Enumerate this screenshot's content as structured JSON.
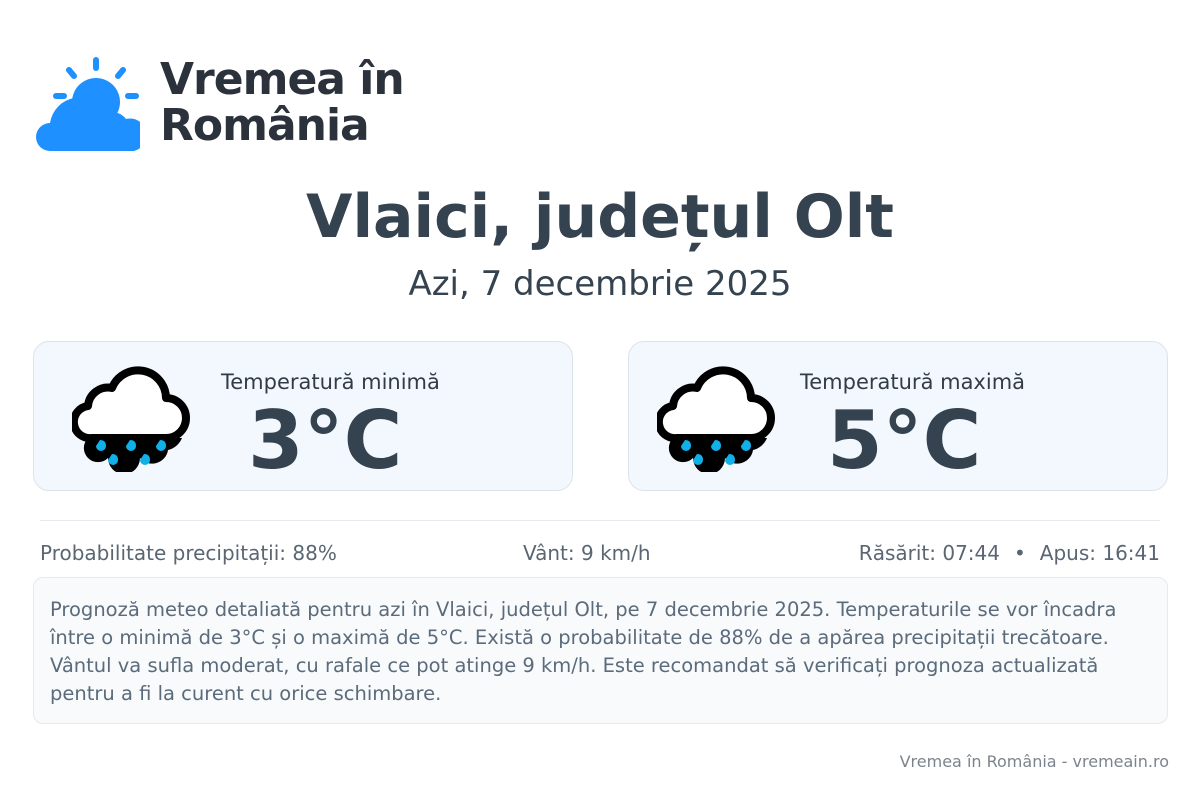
{
  "brand": {
    "name_line1": "Vremea în",
    "name_line2": "România",
    "accent": "#1e90ff"
  },
  "location": {
    "title": "Vlaici, județul Olt",
    "date": "Azi, 7 decembrie 2025"
  },
  "cards": [
    {
      "label": "Temperatură minimă",
      "value": "3°C",
      "icon": "rain-cloud-icon"
    },
    {
      "label": "Temperatură maximă",
      "value": "5°C",
      "icon": "rain-cloud-icon"
    }
  ],
  "stats": {
    "precip": "Probabilitate precipitații: 88%",
    "wind": "Vânt: 9 km/h",
    "sunrise": "Răsărit: 07:44",
    "separator": "•",
    "sunset": "Apus: 16:41"
  },
  "description": "Prognoză meteo detaliată pentru azi în Vlaici, județul Olt, pe 7 decembrie 2025. Temperaturile se vor încadra între o minimă de 3°C și o maximă de 5°C. Există o probabilitate de 88% de a apărea precipitații trecătoare. Vântul va sufla moderat, cu rafale ce pot atinge 9 km/h. Este recomandat să verificați prognoza actualizată pentru a fi la curent cu orice schimbare.",
  "footer": "Vremea în România - vremeain.ro"
}
